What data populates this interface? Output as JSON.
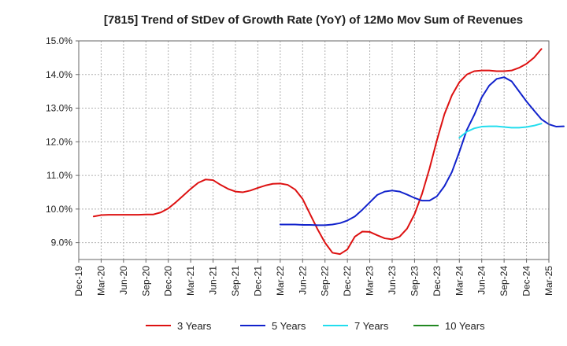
{
  "chart_data": {
    "type": "line",
    "title": "[7815]  Trend of StDev of Growth Rate (YoY) of 12Mo Mov Sum of Revenues",
    "xlabel": "",
    "ylabel": "",
    "x_range": [
      "Dec-19",
      "Mar-25"
    ],
    "ylim": [
      8.5,
      15.0
    ],
    "yticks": [
      9.0,
      10.0,
      11.0,
      12.0,
      13.0,
      14.0,
      15.0
    ],
    "ytick_labels": [
      "9.0%",
      "10.0%",
      "11.0%",
      "12.0%",
      "13.0%",
      "14.0%",
      "15.0%"
    ],
    "xtick_labels": [
      "Dec-19",
      "Mar-20",
      "Jun-20",
      "Sep-20",
      "Dec-20",
      "Mar-21",
      "Jun-21",
      "Sep-21",
      "Dec-21",
      "Mar-22",
      "Jun-22",
      "Sep-22",
      "Dec-22",
      "Mar-23",
      "Jun-23",
      "Sep-23",
      "Dec-23",
      "Mar-24",
      "Jun-24",
      "Sep-24",
      "Dec-24",
      "Mar-25"
    ],
    "grid": true,
    "legend_position": "bottom",
    "series": [
      {
        "name": "3 Years",
        "color": "#dd1111",
        "start_index": 2,
        "values": [
          9.78,
          9.82,
          9.83,
          9.83,
          9.83,
          9.83,
          9.83,
          9.84,
          9.84,
          9.9,
          10.02,
          10.2,
          10.4,
          10.6,
          10.78,
          10.88,
          10.86,
          10.72,
          10.6,
          10.52,
          10.5,
          10.55,
          10.63,
          10.7,
          10.75,
          10.76,
          10.72,
          10.58,
          10.3,
          9.85,
          9.4,
          9.0,
          8.7,
          8.66,
          8.8,
          9.18,
          9.33,
          9.32,
          9.22,
          9.13,
          9.1,
          9.18,
          9.42,
          9.85,
          10.45,
          11.2,
          12.05,
          12.82,
          13.38,
          13.77,
          14.0,
          14.1,
          14.12,
          14.12,
          14.1,
          14.1,
          14.12,
          14.2,
          14.32,
          14.5,
          14.76
        ]
      },
      {
        "name": "5 Years",
        "color": "#1122cc",
        "start_index": 27,
        "values": [
          9.54,
          9.54,
          9.54,
          9.53,
          9.53,
          9.52,
          9.52,
          9.54,
          9.58,
          9.66,
          9.78,
          9.98,
          10.2,
          10.42,
          10.52,
          10.55,
          10.52,
          10.43,
          10.33,
          10.25,
          10.25,
          10.38,
          10.68,
          11.1,
          11.7,
          12.35,
          12.8,
          13.32,
          13.67,
          13.87,
          13.92,
          13.8,
          13.5,
          13.2,
          12.93,
          12.67,
          12.52,
          12.45,
          12.46
        ]
      },
      {
        "name": "7 Years",
        "color": "#22ddee",
        "start_index": 51,
        "values": [
          12.12,
          12.3,
          12.4,
          12.45,
          12.46,
          12.46,
          12.44,
          12.42,
          12.42,
          12.44,
          12.48,
          12.54
        ]
      },
      {
        "name": "10 Years",
        "color": "#228822",
        "start_index": 0,
        "values": []
      }
    ]
  }
}
